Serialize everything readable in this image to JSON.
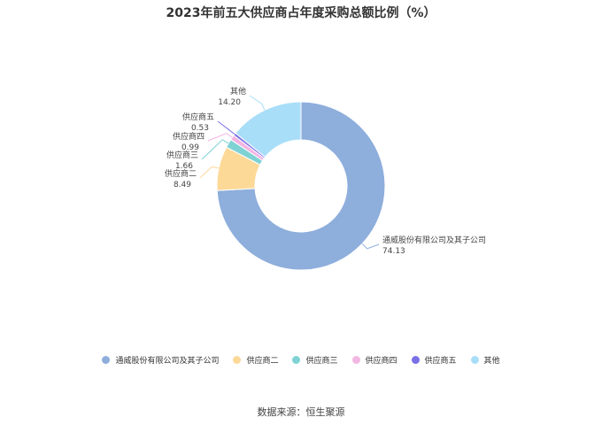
{
  "chart_data": {
    "type": "pie",
    "title": "2023年前五大供应商占年度采购总额比例（%）",
    "slices": [
      {
        "name": "通威股份有限公司及其子公司",
        "value": 74.13,
        "value_label": "74.13",
        "color": "#8eaedc"
      },
      {
        "name": "供应商二",
        "value": 8.49,
        "value_label": "8.49",
        "color": "#fdd998"
      },
      {
        "name": "供应商三",
        "value": 1.66,
        "value_label": "1.66",
        "color": "#7fd2d4"
      },
      {
        "name": "供应商四",
        "value": 0.99,
        "value_label": "0.99",
        "color": "#f2b6e3"
      },
      {
        "name": "供应商五",
        "value": 0.53,
        "value_label": "0.53",
        "color": "#7b6fe6"
      },
      {
        "name": "其他",
        "value": 14.2,
        "value_label": "14.20",
        "color": "#a9def8"
      }
    ],
    "legend_position": "bottom",
    "donut": true
  },
  "source_text": "数据来源：恒生聚源"
}
